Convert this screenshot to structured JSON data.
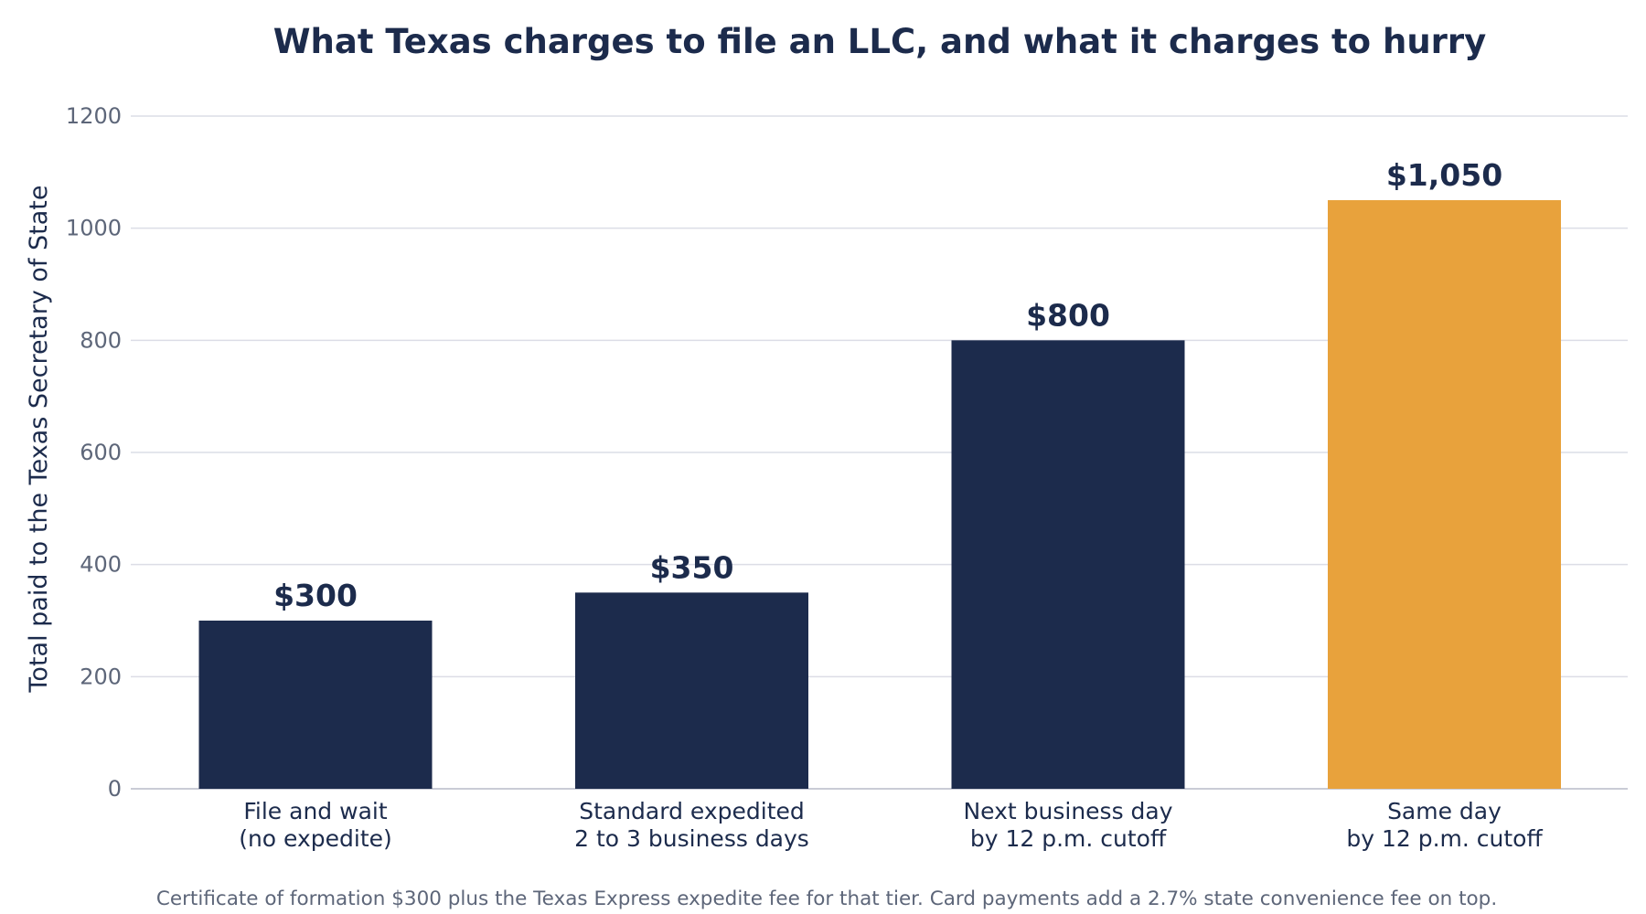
{
  "chart_data": {
    "type": "bar",
    "title": "What Texas charges to file an LLC, and what it charges to hurry",
    "xlabel": "",
    "ylabel": "Total paid to the Texas Secretary of State",
    "categories": [
      [
        "File and wait",
        "(no expedite)"
      ],
      [
        "Standard expedited",
        "2 to 3 business days"
      ],
      [
        "Next business day",
        "by 12 p.m. cutoff"
      ],
      [
        "Same day",
        "by 12 p.m. cutoff"
      ]
    ],
    "values": [
      300,
      350,
      800,
      1050
    ],
    "value_labels": [
      "$300",
      "$350",
      "$800",
      "$1,050"
    ],
    "bar_colors": [
      "#1c2b4c",
      "#1c2b4c",
      "#1c2b4c",
      "#e8a23c"
    ],
    "ylim": [
      0,
      1200
    ],
    "yticks": [
      0,
      200,
      400,
      600,
      800,
      1000,
      1200
    ],
    "grid": true,
    "legend": "none",
    "footnote": "Certificate of formation $300 plus the Texas Express expedite fee for that tier. Card payments add a 2.7% state convenience fee on top."
  },
  "colors": {
    "text_dark": "#1c2b4c",
    "text_muted": "#5d6679",
    "grid": "#dcdde6",
    "accent": "#e8a23c"
  }
}
